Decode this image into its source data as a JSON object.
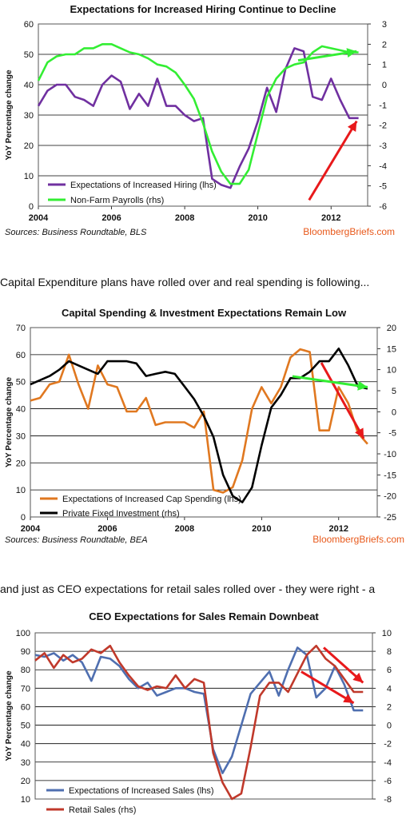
{
  "captions": {
    "between_1_2": "Capital Expenditure plans have rolled over and real spending is following...",
    "between_2_3": "and just as CEO expectations for retail sales rolled over - they were right - a"
  },
  "chart_data": [
    {
      "type": "line",
      "title": "Expectations for Increased Hiring Continue to Decline",
      "ylabel": "YoY Percentage change",
      "ylim": [
        0,
        60
      ],
      "y2lim": [
        -6,
        3
      ],
      "xlim": [
        2004,
        2013
      ],
      "x_ticks": [
        "2004",
        "2006",
        "2008",
        "2010",
        "2012"
      ],
      "y_ticks": [
        "0",
        "10",
        "20",
        "30",
        "40",
        "50",
        "60"
      ],
      "y2_ticks": [
        "-6",
        "-5",
        "-4",
        "-3",
        "-2",
        "-1",
        "0",
        "1",
        "2",
        "3"
      ],
      "grid": true,
      "legend_position": "bottom-left",
      "source": "Sources: Business Roundtable, BLS",
      "brand": "BloombergBriefs.com",
      "series": [
        {
          "name": "Expectations of Increased Hiring (lhs)",
          "axis": "left",
          "color": "#7030a0",
          "x": [
            2004.0,
            2004.25,
            2004.5,
            2004.75,
            2005.0,
            2005.25,
            2005.5,
            2005.75,
            2006.0,
            2006.25,
            2006.5,
            2006.75,
            2007.0,
            2007.25,
            2007.5,
            2007.75,
            2008.0,
            2008.25,
            2008.5,
            2008.75,
            2009.0,
            2009.25,
            2009.5,
            2009.75,
            2010.0,
            2010.25,
            2010.5,
            2010.75,
            2011.0,
            2011.25,
            2011.5,
            2011.75,
            2012.0,
            2012.25,
            2012.5,
            2012.75
          ],
          "values": [
            33,
            38,
            40,
            40,
            36,
            35,
            33,
            40,
            43,
            41,
            32,
            37,
            33,
            42,
            33,
            33,
            30,
            28,
            29,
            9,
            7,
            6,
            13,
            19,
            28,
            39,
            31,
            45,
            52,
            51,
            36,
            35,
            42,
            35,
            29,
            29
          ]
        },
        {
          "name": "Non-Farm Payrolls (rhs)",
          "axis": "right",
          "color": "#33ee33",
          "x": [
            2004.0,
            2004.25,
            2004.5,
            2004.75,
            2005.0,
            2005.25,
            2005.5,
            2005.75,
            2006.0,
            2006.25,
            2006.5,
            2006.75,
            2007.0,
            2007.25,
            2007.5,
            2007.75,
            2008.0,
            2008.25,
            2008.5,
            2008.75,
            2009.0,
            2009.25,
            2009.5,
            2009.75,
            2010.0,
            2010.25,
            2010.5,
            2010.75,
            2011.0,
            2011.25,
            2011.5,
            2011.75,
            2012.0,
            2012.25,
            2012.5,
            2012.75
          ],
          "values": [
            0.2,
            1.1,
            1.4,
            1.5,
            1.5,
            1.8,
            1.8,
            2.0,
            2.0,
            1.8,
            1.6,
            1.5,
            1.3,
            1.0,
            0.9,
            0.6,
            0.0,
            -0.7,
            -1.9,
            -3.3,
            -4.3,
            -4.9,
            -4.9,
            -4.2,
            -2.4,
            -0.6,
            0.3,
            0.8,
            1.0,
            1.1,
            1.6,
            1.9,
            1.8,
            1.7,
            1.6,
            1.6
          ]
        }
      ]
    },
    {
      "type": "line",
      "title": "Capital Spending & Investment Expectations Remain Low",
      "ylabel": "YoY Percentage change",
      "ylim": [
        0,
        70
      ],
      "y2lim": [
        -25,
        20
      ],
      "xlim": [
        2004,
        2013
      ],
      "x_ticks": [
        "2004",
        "2006",
        "2008",
        "2010",
        "2012"
      ],
      "y_ticks": [
        "0",
        "10",
        "20",
        "30",
        "40",
        "50",
        "60",
        "70"
      ],
      "y2_ticks": [
        "-25",
        "-20",
        "-15",
        "-10",
        "-5",
        "0",
        "5",
        "10",
        "15",
        "20"
      ],
      "grid": true,
      "legend_position": "bottom-left",
      "source": "Sources: Business Roundtable, BEA",
      "brand": "BloombergBriefs.com",
      "series": [
        {
          "name": "Expectations of Increased Cap Spending (lhs)",
          "axis": "left",
          "color": "#e07820",
          "x": [
            2004.0,
            2004.25,
            2004.5,
            2004.75,
            2005.0,
            2005.25,
            2005.5,
            2005.75,
            2006.0,
            2006.25,
            2006.5,
            2006.75,
            2007.0,
            2007.25,
            2007.5,
            2007.75,
            2008.0,
            2008.25,
            2008.5,
            2008.75,
            2009.0,
            2009.25,
            2009.5,
            2009.75,
            2010.0,
            2010.25,
            2010.5,
            2010.75,
            2011.0,
            2011.25,
            2011.5,
            2011.75,
            2012.0,
            2012.25,
            2012.5,
            2012.75
          ],
          "values": [
            43,
            44,
            49,
            50,
            60,
            49,
            40,
            56,
            49,
            48,
            39,
            39,
            44,
            34,
            35,
            35,
            35,
            33,
            39,
            10,
            9,
            11,
            21,
            40,
            48,
            42,
            48,
            59,
            62,
            61,
            32,
            32,
            48,
            42,
            31,
            27
          ]
        },
        {
          "name": "Private Fixed Investment (rhs)",
          "axis": "right",
          "color": "#000000",
          "x": [
            2004.0,
            2004.25,
            2004.5,
            2004.75,
            2005.0,
            2005.25,
            2005.5,
            2005.75,
            2006.0,
            2006.25,
            2006.5,
            2006.75,
            2007.0,
            2007.25,
            2007.5,
            2007.75,
            2008.0,
            2008.25,
            2008.5,
            2008.75,
            2009.0,
            2009.25,
            2009.5,
            2009.75,
            2010.0,
            2010.25,
            2010.5,
            2010.75,
            2011.0,
            2011.25,
            2011.5,
            2011.75,
            2012.0,
            2012.25,
            2012.5,
            2012.75
          ],
          "values": [
            6.5,
            7.5,
            8.5,
            10,
            12,
            11,
            10,
            9,
            12,
            12,
            12,
            11.5,
            8.5,
            9,
            9.5,
            9,
            6,
            3,
            -1,
            -6,
            -15,
            -20,
            -21.5,
            -18,
            -8,
            1,
            4,
            8,
            8,
            9.5,
            12,
            12,
            15,
            11,
            6,
            5.5
          ]
        }
      ]
    },
    {
      "type": "line",
      "title": "CEO Expectations for Sales Remain Downbeat",
      "ylabel": "YoY Percentage change",
      "ylim": [
        10,
        100
      ],
      "y2lim": [
        -8,
        10
      ],
      "xlim": [
        2004,
        2013
      ],
      "x_ticks": [],
      "y_ticks": [
        "10",
        "20",
        "30",
        "40",
        "50",
        "60",
        "70",
        "80",
        "90",
        "100"
      ],
      "y2_ticks": [
        "-8",
        "-6",
        "-4",
        "-2",
        "0",
        "2",
        "4",
        "6",
        "8",
        "10"
      ],
      "grid": true,
      "legend_position": "bottom-left",
      "source": "",
      "brand": "",
      "series": [
        {
          "name": "Expectations of Increased Sales (lhs)",
          "axis": "left",
          "color": "#4f6fb0",
          "x": [
            2004.0,
            2004.25,
            2004.5,
            2004.75,
            2005.0,
            2005.25,
            2005.5,
            2005.75,
            2006.0,
            2006.25,
            2006.5,
            2006.75,
            2007.0,
            2007.25,
            2007.5,
            2007.75,
            2008.0,
            2008.25,
            2008.5,
            2008.75,
            2009.0,
            2009.25,
            2009.5,
            2009.75,
            2010.0,
            2010.25,
            2010.5,
            2010.75,
            2011.0,
            2011.25,
            2011.5,
            2011.75,
            2012.0,
            2012.25,
            2012.5,
            2012.75
          ],
          "values": [
            88,
            87,
            89,
            85,
            88,
            84,
            74,
            87,
            86,
            82,
            75,
            70,
            73,
            66,
            68,
            70,
            70,
            68,
            67,
            37,
            24,
            33,
            50,
            67,
            73,
            79,
            66,
            80,
            92,
            88,
            65,
            70,
            82,
            72,
            58,
            58
          ]
        },
        {
          "name": "Retail Sales (rhs)",
          "axis": "right",
          "color": "#c0392b",
          "x": [
            2004.0,
            2004.25,
            2004.5,
            2004.75,
            2005.0,
            2005.25,
            2005.5,
            2005.75,
            2006.0,
            2006.25,
            2006.5,
            2006.75,
            2007.0,
            2007.25,
            2007.5,
            2007.75,
            2008.0,
            2008.25,
            2008.5,
            2008.75,
            2009.0,
            2009.25,
            2009.5,
            2009.75,
            2010.0,
            2010.25,
            2010.5,
            2010.75,
            2011.0,
            2011.25,
            2011.5,
            2011.75,
            2012.0,
            2012.25,
            2012.5,
            2012.75
          ],
          "values": [
            7,
            7.8,
            6.2,
            7.6,
            6.8,
            7.2,
            8.2,
            7.8,
            8.6,
            6.8,
            5.4,
            4.2,
            3.8,
            4.2,
            4,
            5.4,
            4,
            5,
            4.6,
            -3,
            -6.2,
            -8,
            -7.4,
            -2.4,
            3.2,
            4.6,
            4.6,
            3.6,
            5.6,
            7.6,
            8.6,
            7.2,
            6.4,
            5,
            3.6,
            3.6
          ]
        }
      ]
    }
  ]
}
